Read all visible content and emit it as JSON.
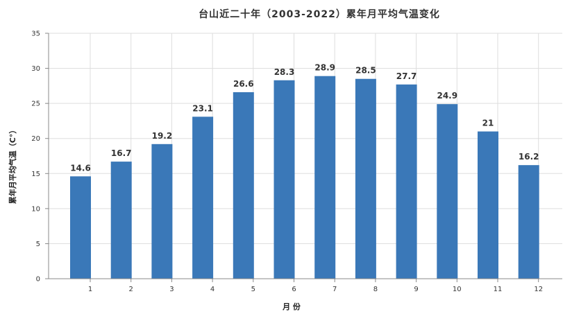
{
  "chart_data": {
    "type": "bar",
    "title": "台山近二十年（2003-2022）累年月平均气温变化",
    "xlabel": "月 份",
    "ylabel": "累年月平均气温（C°）",
    "categories": [
      "1",
      "2",
      "3",
      "4",
      "5",
      "6",
      "7",
      "8",
      "9",
      "10",
      "11",
      "12"
    ],
    "values": [
      14.6,
      16.7,
      19.2,
      23.1,
      26.6,
      28.3,
      28.9,
      28.5,
      27.7,
      24.9,
      21,
      16.2
    ],
    "value_labels": [
      "14.6",
      "16.7",
      "19.2",
      "23.1",
      "26.6",
      "28.3",
      "28.9",
      "28.5",
      "27.7",
      "24.9",
      "21",
      "16.2"
    ],
    "ylim": [
      0,
      35
    ],
    "yticks": [
      "0",
      "5",
      "10",
      "15",
      "20",
      "25",
      "30",
      "35"
    ],
    "grid": true,
    "colors": {
      "bar": "#3a78b8"
    }
  }
}
